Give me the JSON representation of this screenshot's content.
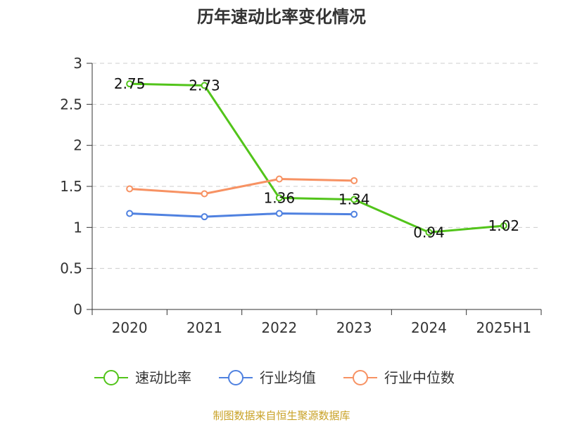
{
  "chart_data": {
    "type": "line",
    "title": "历年速动比率变化情况",
    "categories": [
      "2020",
      "2021",
      "2022",
      "2023",
      "2024",
      "2025H1"
    ],
    "ylim": [
      0,
      3
    ],
    "yticks": [
      "0",
      "0.5",
      "1",
      "1.5",
      "2",
      "2.5",
      "3"
    ],
    "grid": true,
    "legend_position": "bottom",
    "series": [
      {
        "name": "速动比率",
        "color": "#52c41a",
        "values": [
          2.75,
          2.73,
          1.36,
          1.34,
          0.94,
          1.02
        ],
        "labels": [
          "2.75",
          "2.73",
          "1.36",
          "1.34",
          "0.94",
          "1.02"
        ]
      },
      {
        "name": "行业均值",
        "color": "#4f81e0",
        "values": [
          1.17,
          1.13,
          1.17,
          1.16,
          null,
          null
        ]
      },
      {
        "name": "行业中位数",
        "color": "#f79263",
        "values": [
          1.47,
          1.41,
          1.59,
          1.57,
          null,
          null
        ]
      }
    ]
  },
  "source_text": "制图数据来自恒生聚源数据库"
}
